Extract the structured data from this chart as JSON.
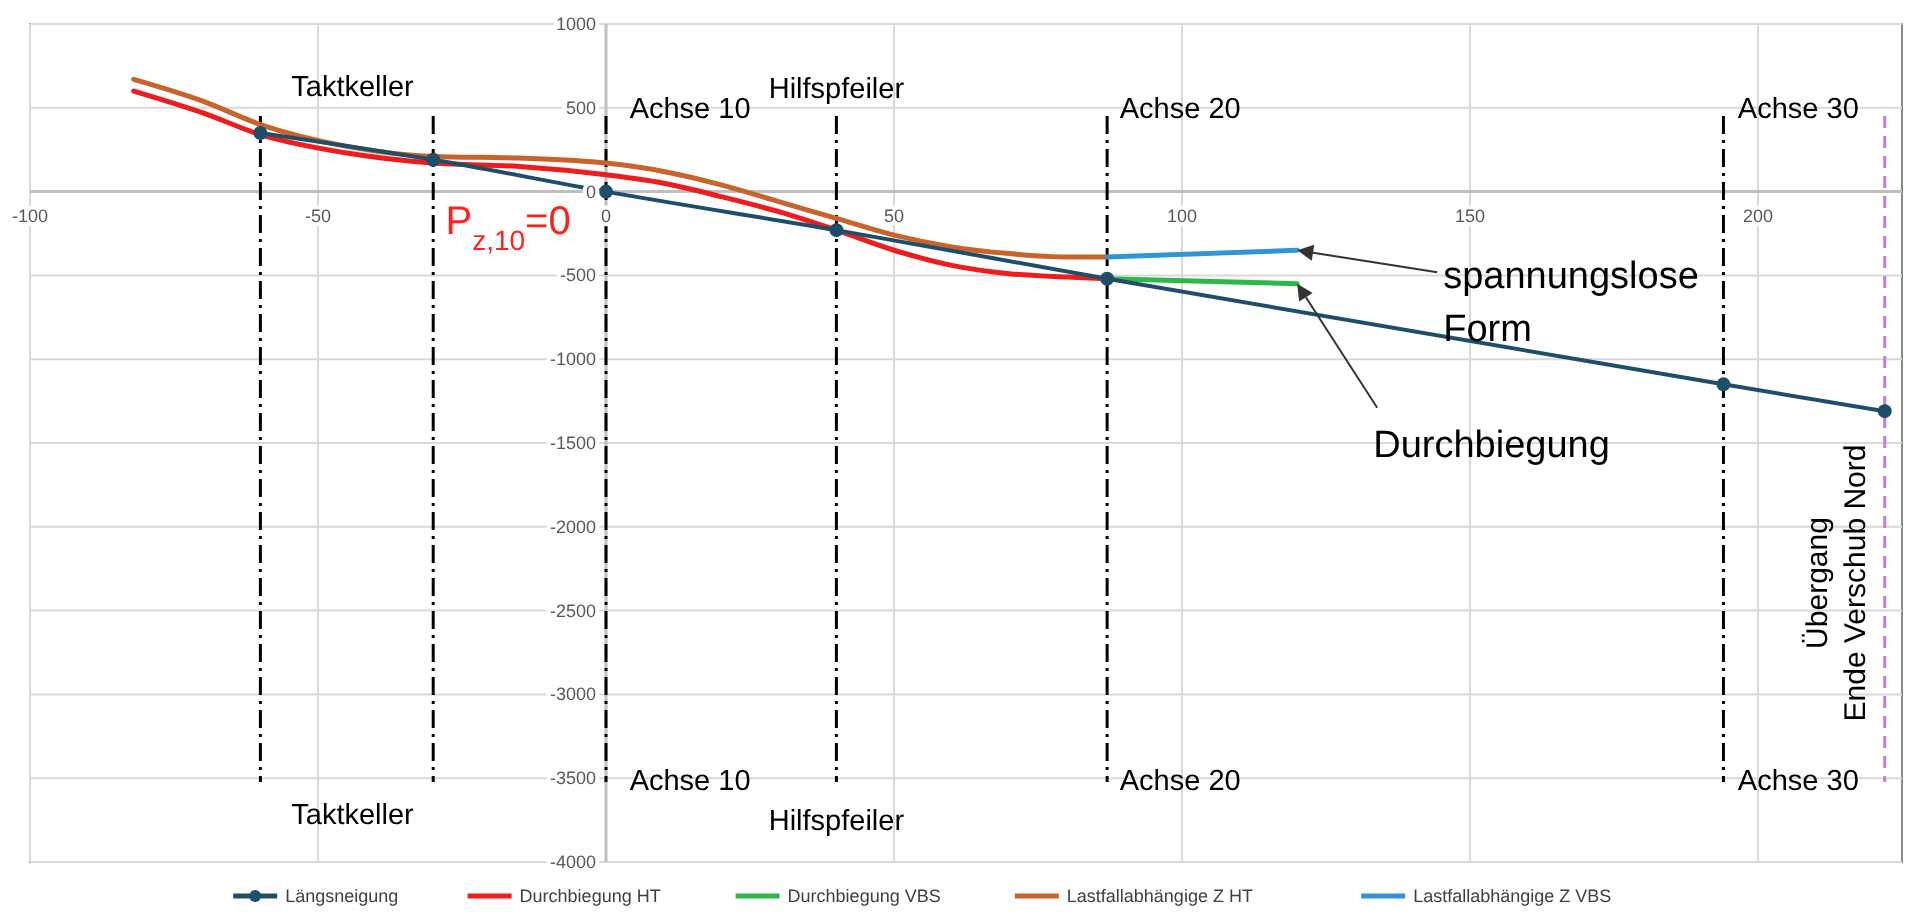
{
  "chart_data": {
    "type": "line",
    "xlim": [
      -100,
      225
    ],
    "ylim": [
      -4000,
      1000
    ],
    "xticks": [
      -100,
      -50,
      0,
      50,
      100,
      150,
      200
    ],
    "yticks": [
      1000,
      500,
      0,
      -500,
      -1000,
      -1500,
      -2000,
      -2500,
      -3000,
      -3500,
      -4000
    ],
    "grid": true,
    "legend": "bottom",
    "line_style": "solid",
    "series": [
      {
        "name": "Längsneigung",
        "color": "#1f4e6b",
        "marker": "circle",
        "x": [
          -60,
          -30,
          0,
          40,
          87,
          194,
          222
        ],
        "values": [
          350,
          190,
          0,
          -230,
          -520,
          -1150,
          -1310
        ]
      },
      {
        "name": "Durchbiegung HT",
        "color": "#ee1c1c",
        "marker": "none",
        "x": [
          -82,
          -70,
          -60,
          -45,
          -30,
          -15,
          0,
          10,
          20,
          30,
          40,
          50,
          60,
          70,
          80,
          87
        ],
        "values": [
          600,
          470,
          340,
          230,
          170,
          150,
          100,
          50,
          -30,
          -120,
          -230,
          -350,
          -440,
          -490,
          -510,
          -520
        ]
      },
      {
        "name": "Durchbiegung VBS",
        "color": "#2eb84a",
        "marker": "none",
        "x": [
          87,
          120
        ],
        "values": [
          -520,
          -550
        ]
      },
      {
        "name": "Lastfallabhängige Z HT",
        "color": "#c8642a",
        "marker": "none",
        "x": [
          -82,
          -70,
          -60,
          -45,
          -30,
          -15,
          0,
          10,
          20,
          30,
          40,
          50,
          60,
          70,
          80,
          87
        ],
        "values": [
          670,
          540,
          400,
          270,
          210,
          200,
          170,
          120,
          40,
          -60,
          -160,
          -260,
          -330,
          -370,
          -390,
          -390
        ]
      },
      {
        "name": "Lastfallabhängige Z VBS",
        "color": "#2e95d8",
        "marker": "none",
        "x": [
          87,
          120
        ],
        "values": [
          -390,
          -350
        ]
      }
    ],
    "ref_lines": [
      {
        "axis": "x",
        "value": -60,
        "color": "#000000",
        "line_style": "dashdot"
      },
      {
        "axis": "x",
        "value": -30,
        "color": "#000000",
        "line_style": "dashdot"
      },
      {
        "axis": "x",
        "value": 0,
        "color": "#000000",
        "line_style": "dashdot"
      },
      {
        "axis": "x",
        "value": 40,
        "color": "#000000",
        "line_style": "dashdot"
      },
      {
        "axis": "x",
        "value": 87,
        "color": "#000000",
        "line_style": "dashdot"
      },
      {
        "axis": "x",
        "value": 194,
        "color": "#000000",
        "line_style": "dashdot"
      },
      {
        "axis": "x",
        "value": 222,
        "color": "#c080e0",
        "line_style": "dashed",
        "label": "Übergang\nEnde Verschub Nord"
      }
    ],
    "annotations": [
      "Taktkeller",
      "Taktkeller",
      "Achse 10",
      "Achse 10",
      "Hilfspfeiler",
      "Hilfspfeiler",
      "Achse 20",
      "Achse 20",
      "Achse 30",
      "Achse 30",
      "P$_{z,10}$=0",
      {
        "text": "spannungslose\nForm",
        "x": 120,
        "y": -350
      },
      {
        "text": "Durchbiegung",
        "x": 120,
        "y": -550
      }
    ]
  }
}
